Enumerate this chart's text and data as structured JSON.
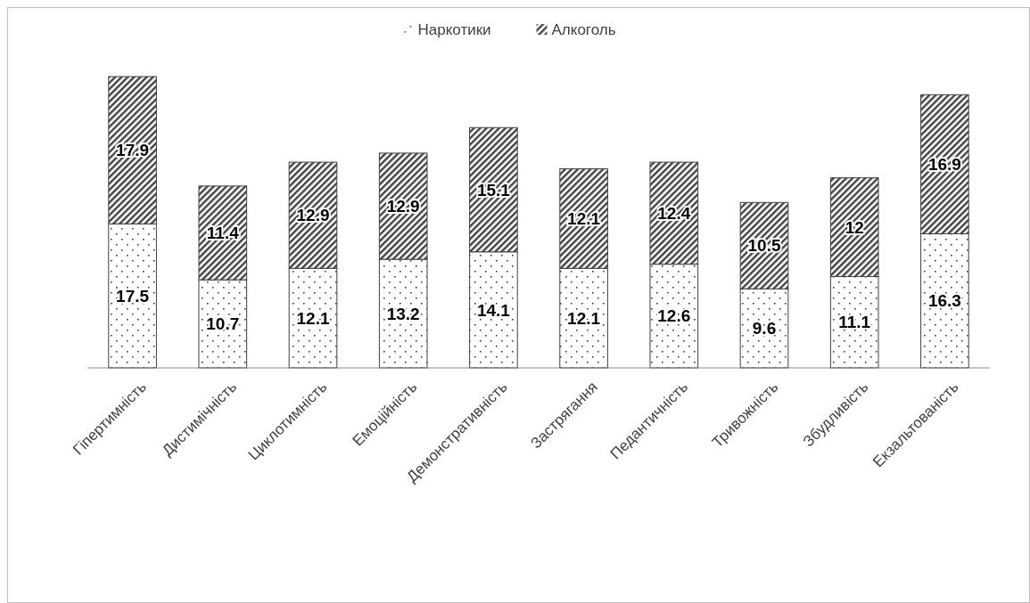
{
  "chart_data": {
    "type": "bar",
    "stacked": true,
    "data_labels": true,
    "legend": "top",
    "grid": false,
    "categories": [
      "Гіпертимність",
      "Дистимічність",
      "Циклотимність",
      "Емоційність",
      "Демонстративність",
      "Застрягання",
      "Педантичність",
      "Тривожність",
      "Збудливість",
      "Екзальтованість"
    ],
    "series": [
      {
        "name": "Наркотики",
        "color": "#404040",
        "values": [
          17.5,
          10.7,
          12.1,
          13.2,
          14.1,
          12.1,
          12.6,
          9.6,
          11.1,
          16.3
        ]
      },
      {
        "name": "Алкоголь",
        "color": "#404040",
        "values": [
          17.9,
          11.4,
          12.9,
          12.9,
          15.1,
          12.1,
          12.4,
          10.5,
          12,
          16.9
        ]
      }
    ]
  }
}
